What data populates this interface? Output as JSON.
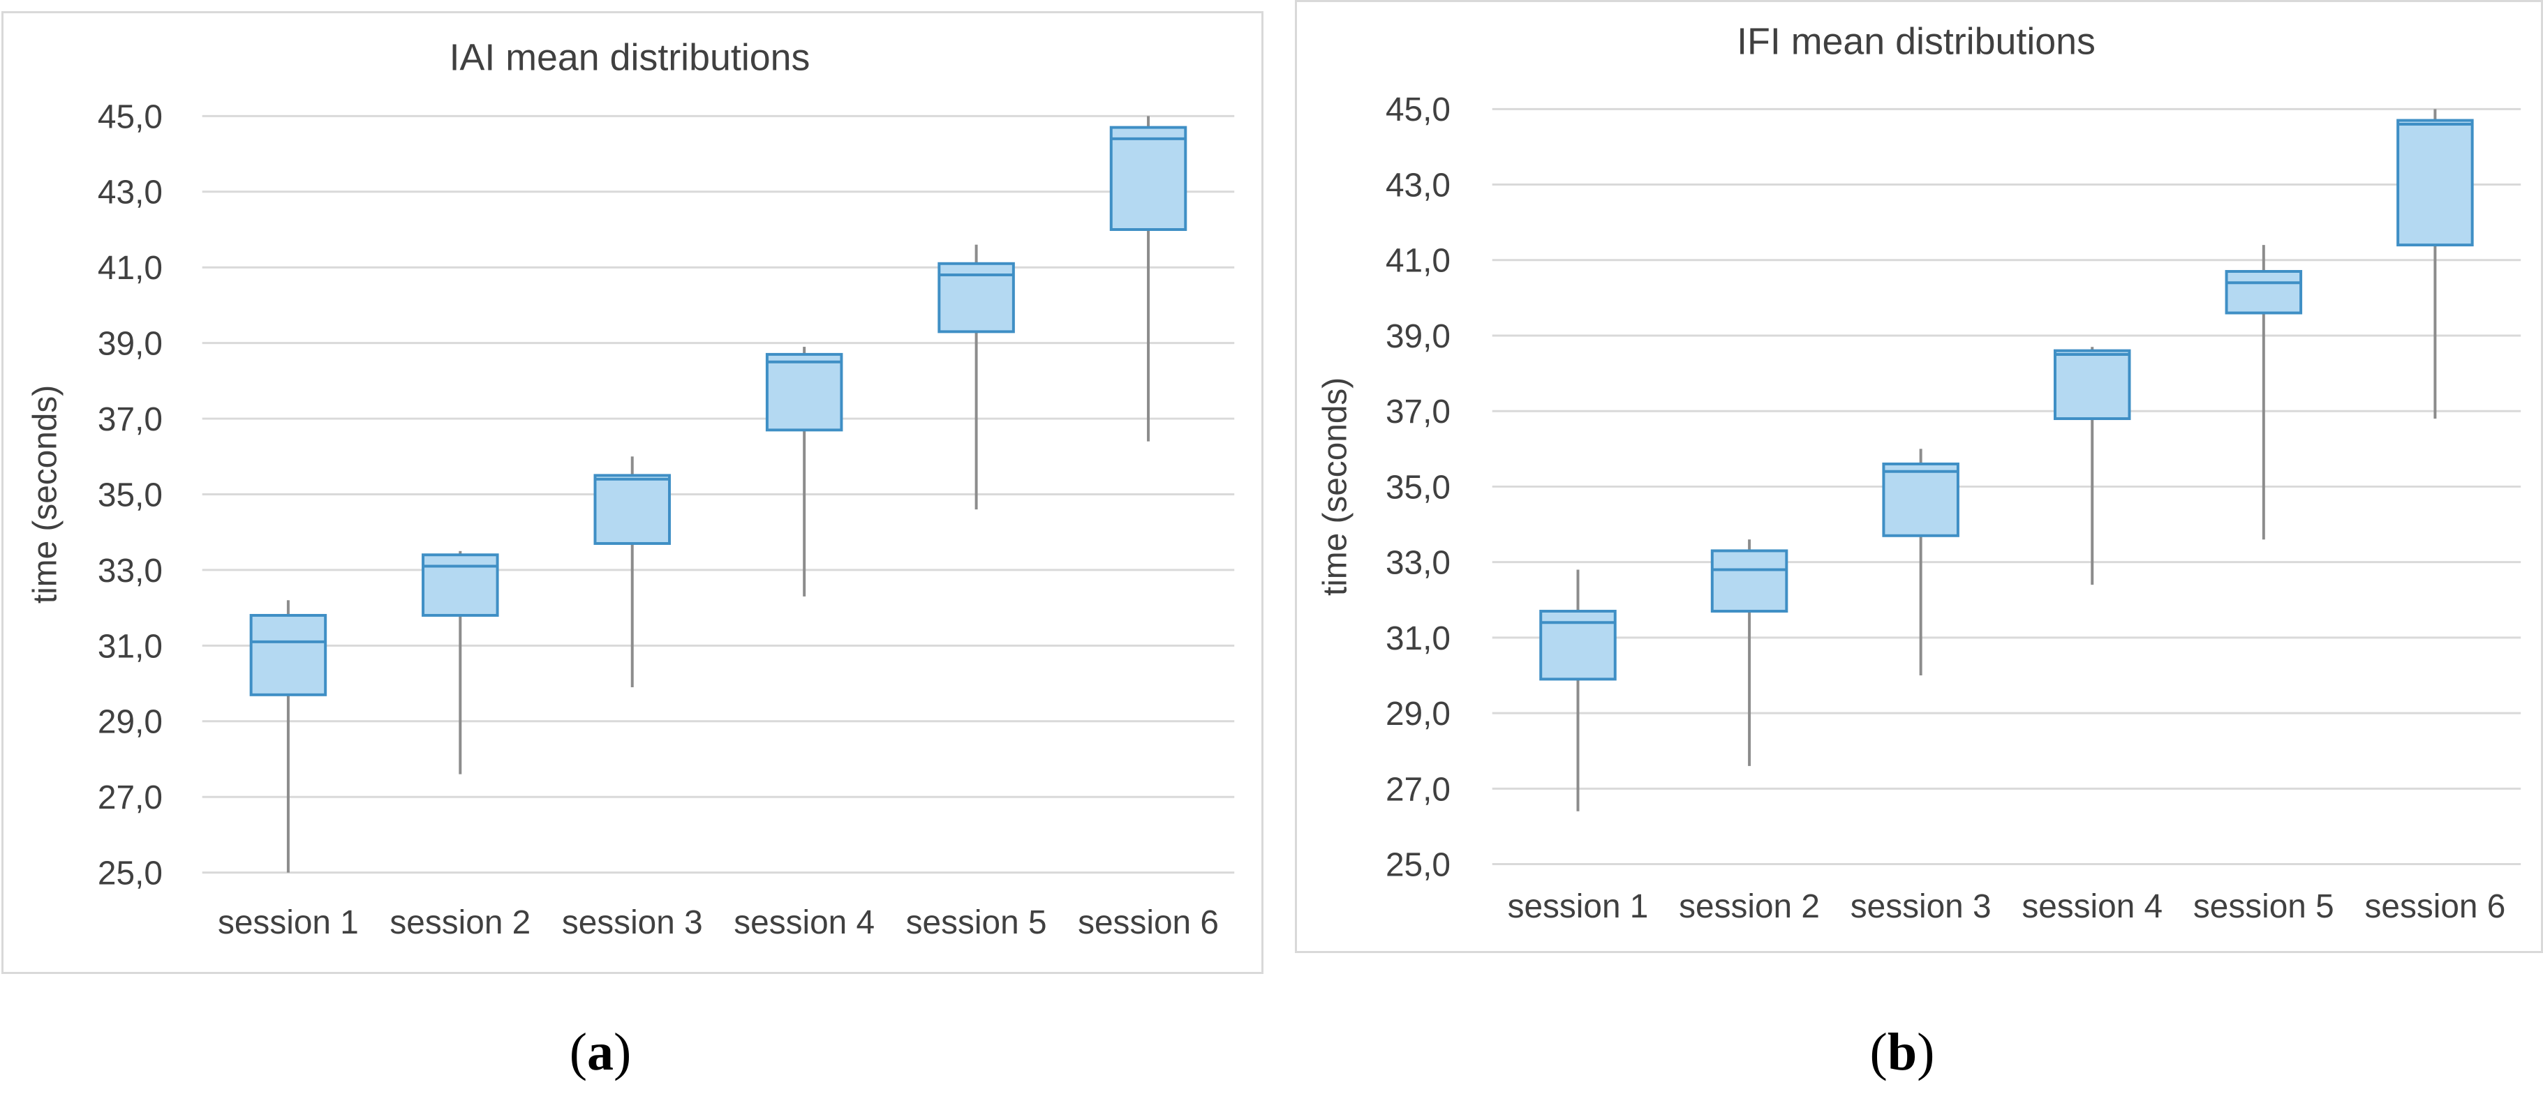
{
  "colors": {
    "box_fill": "#b4d9f2",
    "box_stroke": "#3f8fc5",
    "median": "#3f8fc5",
    "whisker": "#8c8c8c",
    "grid": "#d9d9d9",
    "text": "#404040"
  },
  "chart_data": [
    {
      "type": "boxplot",
      "title": "IAI mean distributions",
      "xlabel": "",
      "ylabel": "time (seconds)",
      "ylim": [
        25.0,
        45.0
      ],
      "yticks": [
        "25,0",
        "27,0",
        "29,0",
        "31,0",
        "33,0",
        "35,0",
        "37,0",
        "39,0",
        "41,0",
        "43,0",
        "45,0"
      ],
      "ytick_values": [
        25,
        27,
        29,
        31,
        33,
        35,
        37,
        39,
        41,
        43,
        45
      ],
      "categories": [
        "session 1",
        "session 2",
        "session 3",
        "session 4",
        "session 5",
        "session 6"
      ],
      "boxes": [
        {
          "min": 25.0,
          "q1": 29.7,
          "median": 31.1,
          "q3": 31.8,
          "max": 32.2
        },
        {
          "min": 27.6,
          "q1": 31.8,
          "median": 33.1,
          "q3": 33.4,
          "max": 33.5
        },
        {
          "min": 29.9,
          "q1": 33.7,
          "median": 35.4,
          "q3": 35.5,
          "max": 36.0
        },
        {
          "min": 32.3,
          "q1": 36.7,
          "median": 38.5,
          "q3": 38.7,
          "max": 38.9
        },
        {
          "min": 34.6,
          "q1": 39.3,
          "median": 40.8,
          "q3": 41.1,
          "max": 41.6
        },
        {
          "min": 36.4,
          "q1": 42.0,
          "median": 44.4,
          "q3": 44.7,
          "max": 45.0
        }
      ],
      "caption": "(a)",
      "caption_letter": "a"
    },
    {
      "type": "boxplot",
      "title": "IFI mean distributions",
      "xlabel": "",
      "ylabel": "time (seconds)",
      "ylim": [
        25.0,
        45.0
      ],
      "yticks": [
        "25,0",
        "27,0",
        "29,0",
        "31,0",
        "33,0",
        "35,0",
        "37,0",
        "39,0",
        "41,0",
        "43,0",
        "45,0"
      ],
      "ytick_values": [
        25,
        27,
        29,
        31,
        33,
        35,
        37,
        39,
        41,
        43,
        45
      ],
      "categories": [
        "session 1",
        "session 2",
        "session 3",
        "session 4",
        "session 5",
        "session 6"
      ],
      "boxes": [
        {
          "min": 26.4,
          "q1": 29.9,
          "median": 31.4,
          "q3": 31.7,
          "max": 32.8
        },
        {
          "min": 27.6,
          "q1": 31.7,
          "median": 32.8,
          "q3": 33.3,
          "max": 33.6
        },
        {
          "min": 30.0,
          "q1": 33.7,
          "median": 35.4,
          "q3": 35.6,
          "max": 36.0
        },
        {
          "min": 32.4,
          "q1": 36.8,
          "median": 38.5,
          "q3": 38.6,
          "max": 38.7
        },
        {
          "min": 33.6,
          "q1": 39.6,
          "median": 40.4,
          "q3": 40.7,
          "max": 41.4
        },
        {
          "min": 36.8,
          "q1": 41.4,
          "median": 44.6,
          "q3": 44.7,
          "max": 45.0
        }
      ],
      "caption": "(b)",
      "caption_letter": "b"
    }
  ]
}
